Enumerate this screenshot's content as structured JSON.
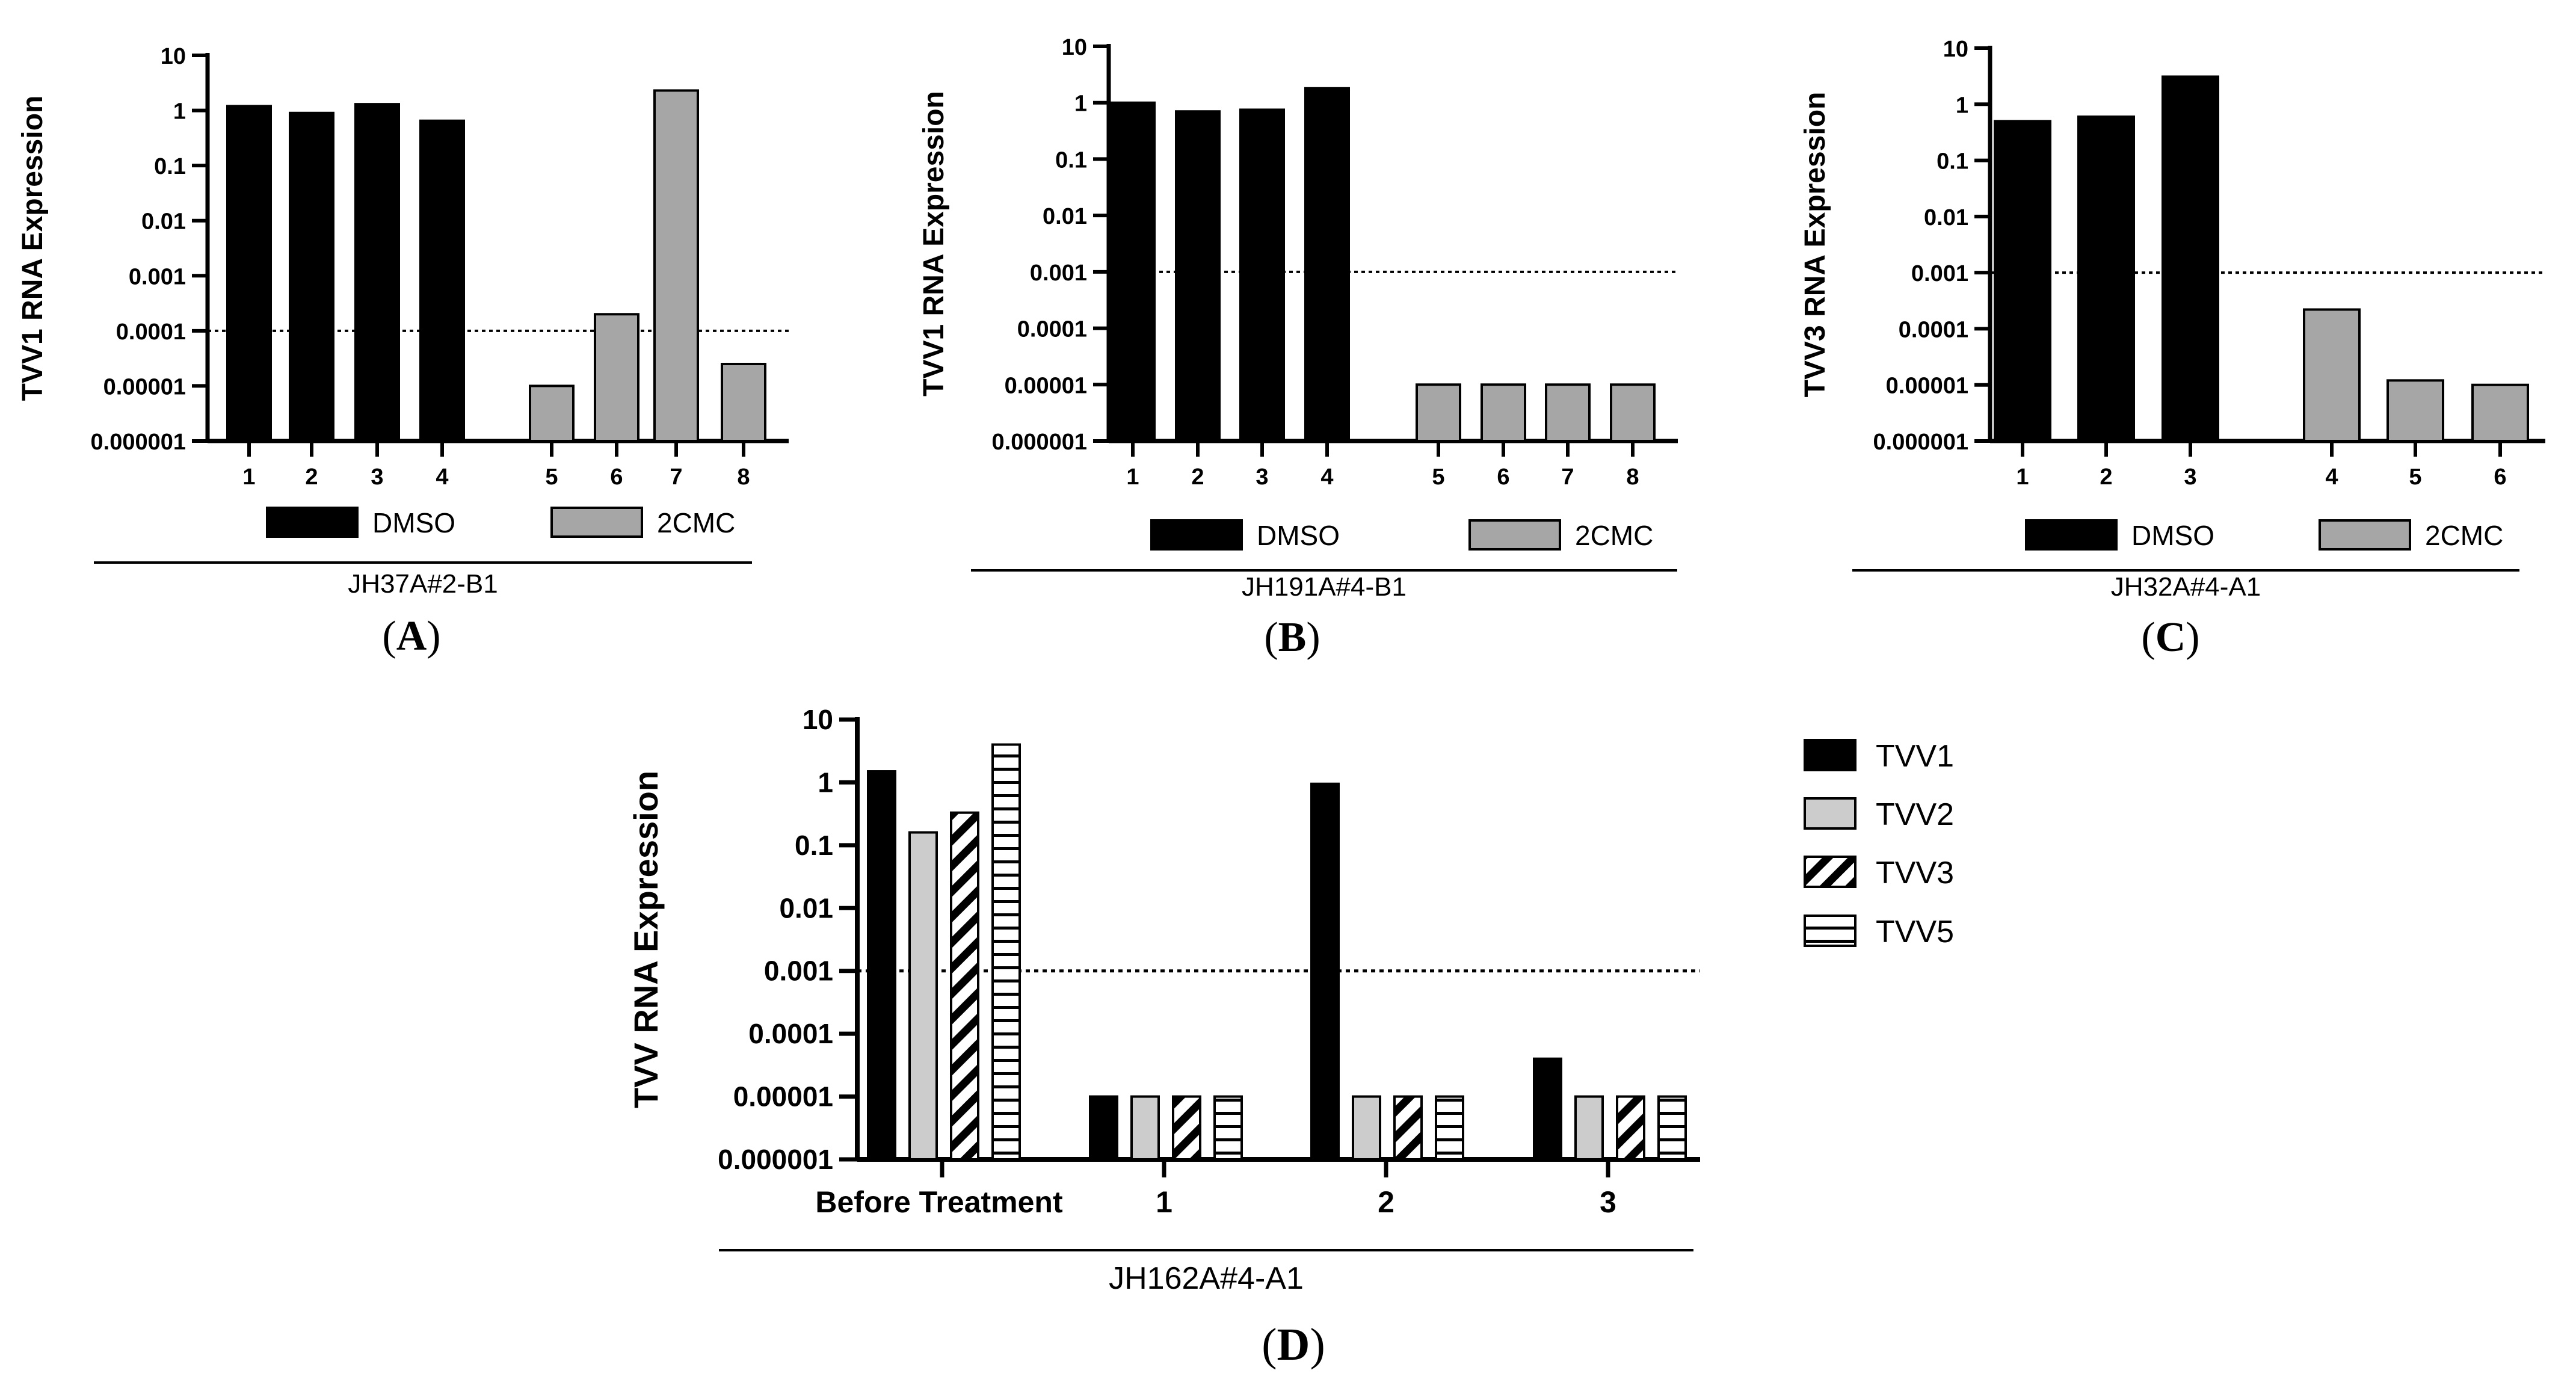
{
  "figure": {
    "colors": {
      "black": "#000000",
      "gray": "#a6a6a6",
      "lightgray": "#cccccc",
      "white": "#ffffff"
    }
  },
  "chart_data": [
    {
      "id": "A",
      "panel_label": "A",
      "type": "bar",
      "scale": "log",
      "ylabel": "TVV1 RNA Expression",
      "ylim": [
        1e-06,
        10
      ],
      "yticks": [
        "10",
        "1",
        "0.1",
        "0.01",
        "0.001",
        "0.0001",
        "0.00001",
        "0.000001"
      ],
      "threshold": 0.0001,
      "categories": [
        "1",
        "2",
        "3",
        "4",
        "5",
        "6",
        "7",
        "8"
      ],
      "values": [
        1.2,
        0.9,
        1.3,
        0.65,
        1e-05,
        0.0002,
        2.3,
        2.5e-05
      ],
      "groups": [
        "DMSO",
        "DMSO",
        "DMSO",
        "DMSO",
        "2CMC",
        "2CMC",
        "2CMC",
        "2CMC"
      ],
      "legend": [
        {
          "name": "DMSO",
          "color": "#000000"
        },
        {
          "name": "2CMC",
          "color": "#a6a6a6"
        }
      ],
      "group_label": "JH37A#2-B1"
    },
    {
      "id": "B",
      "panel_label": "B",
      "type": "bar",
      "scale": "log",
      "ylabel": "TVV1 RNA Expression",
      "ylim": [
        1e-06,
        10
      ],
      "yticks": [
        "10",
        "1",
        "0.1",
        "0.01",
        "0.001",
        "0.0001",
        "0.00001",
        "0.000001"
      ],
      "threshold": 0.001,
      "categories": [
        "1",
        "2",
        "3",
        "4",
        "5",
        "6",
        "7",
        "8"
      ],
      "values": [
        1.0,
        0.7,
        0.75,
        1.8,
        1e-05,
        1e-05,
        1e-05,
        1e-05
      ],
      "groups": [
        "DMSO",
        "DMSO",
        "DMSO",
        "DMSO",
        "2CMC",
        "2CMC",
        "2CMC",
        "2CMC"
      ],
      "legend": [
        {
          "name": "DMSO",
          "color": "#000000"
        },
        {
          "name": "2CMC",
          "color": "#a6a6a6"
        }
      ],
      "group_label": "JH191A#4-B1"
    },
    {
      "id": "C",
      "panel_label": "C",
      "type": "bar",
      "scale": "log",
      "ylabel": "TVV3 RNA Expression",
      "ylim": [
        1e-06,
        10
      ],
      "yticks": [
        "10",
        "1",
        "0.1",
        "0.01",
        "0.001",
        "0.0001",
        "0.00001",
        "0.000001"
      ],
      "threshold": 0.001,
      "categories": [
        "1",
        "2",
        "3",
        "4",
        "5",
        "6"
      ],
      "values": [
        0.5,
        0.6,
        3.1,
        0.00022,
        1.2e-05,
        1e-05
      ],
      "groups": [
        "DMSO",
        "DMSO",
        "DMSO",
        "2CMC",
        "2CMC",
        "2CMC"
      ],
      "legend": [
        {
          "name": "DMSO",
          "color": "#000000"
        },
        {
          "name": "2CMC",
          "color": "#a6a6a6"
        }
      ],
      "group_label": "JH32A#4-A1"
    },
    {
      "id": "D",
      "panel_label": "D",
      "type": "bar",
      "scale": "log",
      "ylabel": "TVV RNA Expression",
      "ylim": [
        1e-06,
        10
      ],
      "yticks": [
        "10",
        "1",
        "0.1",
        "0.01",
        "0.001",
        "0.0001",
        "0.00001",
        "0.000001"
      ],
      "threshold": 0.001,
      "categories": [
        "Before Treatment",
        "1",
        "2",
        "3"
      ],
      "series": [
        {
          "name": "TVV1",
          "pattern": "solid-black",
          "values": [
            1.5,
            1e-05,
            0.95,
            4e-05
          ]
        },
        {
          "name": "TVV2",
          "pattern": "solid-lightgray",
          "values": [
            0.16,
            1e-05,
            1e-05,
            1e-05
          ]
        },
        {
          "name": "TVV3",
          "pattern": "diagonal-stripes",
          "values": [
            0.33,
            1e-05,
            1e-05,
            1e-05
          ]
        },
        {
          "name": "TVV5",
          "pattern": "horizontal-stripes",
          "values": [
            4.0,
            1e-05,
            1e-05,
            1e-05
          ]
        }
      ],
      "group_label": "JH162A#4-A1"
    }
  ]
}
